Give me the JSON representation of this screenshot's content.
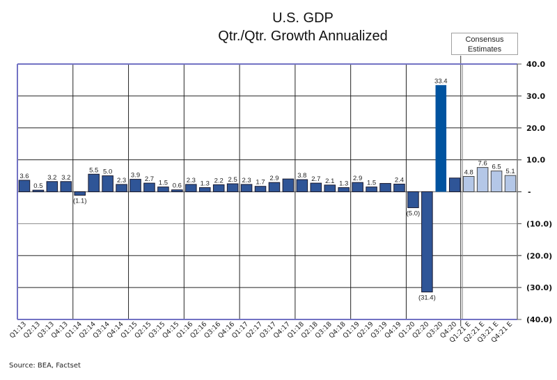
{
  "chart_data": {
    "type": "bar",
    "title": "U.S. GDP",
    "subtitle": "Qtr./Qtr. Growth Annualized",
    "xlabel": "",
    "ylabel": "",
    "ylim": [
      -40,
      40
    ],
    "yticks": [
      40,
      30,
      20,
      10,
      0,
      -10,
      -20,
      -30,
      -40
    ],
    "ytick_labels": [
      "40.0",
      "30.0",
      "20.0",
      "10.0",
      "-",
      "(10.0)",
      "(20.0)",
      "(30.0)",
      "(40.0)"
    ],
    "y_axis_side": "right",
    "grid": true,
    "annotation": "Consensus\nEstimates",
    "source": "Source: BEA, Factset",
    "colors": {
      "actual": "#2f5597",
      "highlight": "#00539f",
      "estimate": "#b4c7e7",
      "frame": "#7272c4"
    },
    "categories": [
      "Q1:13",
      "Q2:13",
      "Q3:13",
      "Q4:13",
      "Q1:14",
      "Q2:14",
      "Q3:14",
      "Q4:14",
      "Q1:15",
      "Q2:15",
      "Q3:15",
      "Q4:15",
      "Q1:16",
      "Q2:16",
      "Q3:16",
      "Q4:16",
      "Q1:17",
      "Q2:17",
      "Q3:17",
      "Q4:17",
      "Q1:18",
      "Q2:18",
      "Q3:18",
      "Q4:18",
      "Q1:19",
      "Q2:19",
      "Q3:19",
      "Q4:19",
      "Q1:20",
      "Q2:20",
      "Q3:20",
      "Q4:20",
      "Q1:21 E",
      "Q2:21 E",
      "Q3:21 E",
      "Q4:21 E"
    ],
    "values": [
      3.6,
      0.5,
      3.2,
      3.2,
      -1.1,
      5.5,
      5.0,
      2.3,
      3.9,
      2.7,
      1.5,
      0.6,
      2.3,
      1.3,
      2.2,
      2.5,
      2.3,
      1.7,
      2.9,
      4.0,
      3.8,
      2.7,
      2.1,
      1.3,
      2.9,
      1.5,
      2.6,
      2.4,
      -5.0,
      -31.4,
      33.4,
      4.3,
      4.8,
      7.6,
      6.5,
      5.1
    ],
    "data_labels": [
      "3.6",
      "0.5",
      "3.2",
      "3.2",
      "(1.1)",
      "5.5",
      "5.0",
      "2.3",
      "3.9",
      "2.7",
      "1.5",
      "0.6",
      "2.3",
      "1.3",
      "2.2",
      "2.5",
      "2.3",
      "1.7",
      "2.9",
      "",
      "3.8",
      "2.7",
      "2.1",
      "1.3",
      "2.9",
      "1.5",
      "",
      "2.4",
      "(5.0)",
      "(31.4)",
      "33.4",
      "",
      "4.8",
      "7.6",
      "6.5",
      "5.1"
    ],
    "bar_kind": [
      "a",
      "a",
      "a",
      "a",
      "a",
      "a",
      "a",
      "a",
      "a",
      "a",
      "a",
      "a",
      "a",
      "a",
      "a",
      "a",
      "a",
      "a",
      "a",
      "a",
      "a",
      "a",
      "a",
      "a",
      "a",
      "a",
      "a",
      "a",
      "a",
      "a",
      "h",
      "a",
      "e",
      "e",
      "e",
      "e"
    ]
  }
}
